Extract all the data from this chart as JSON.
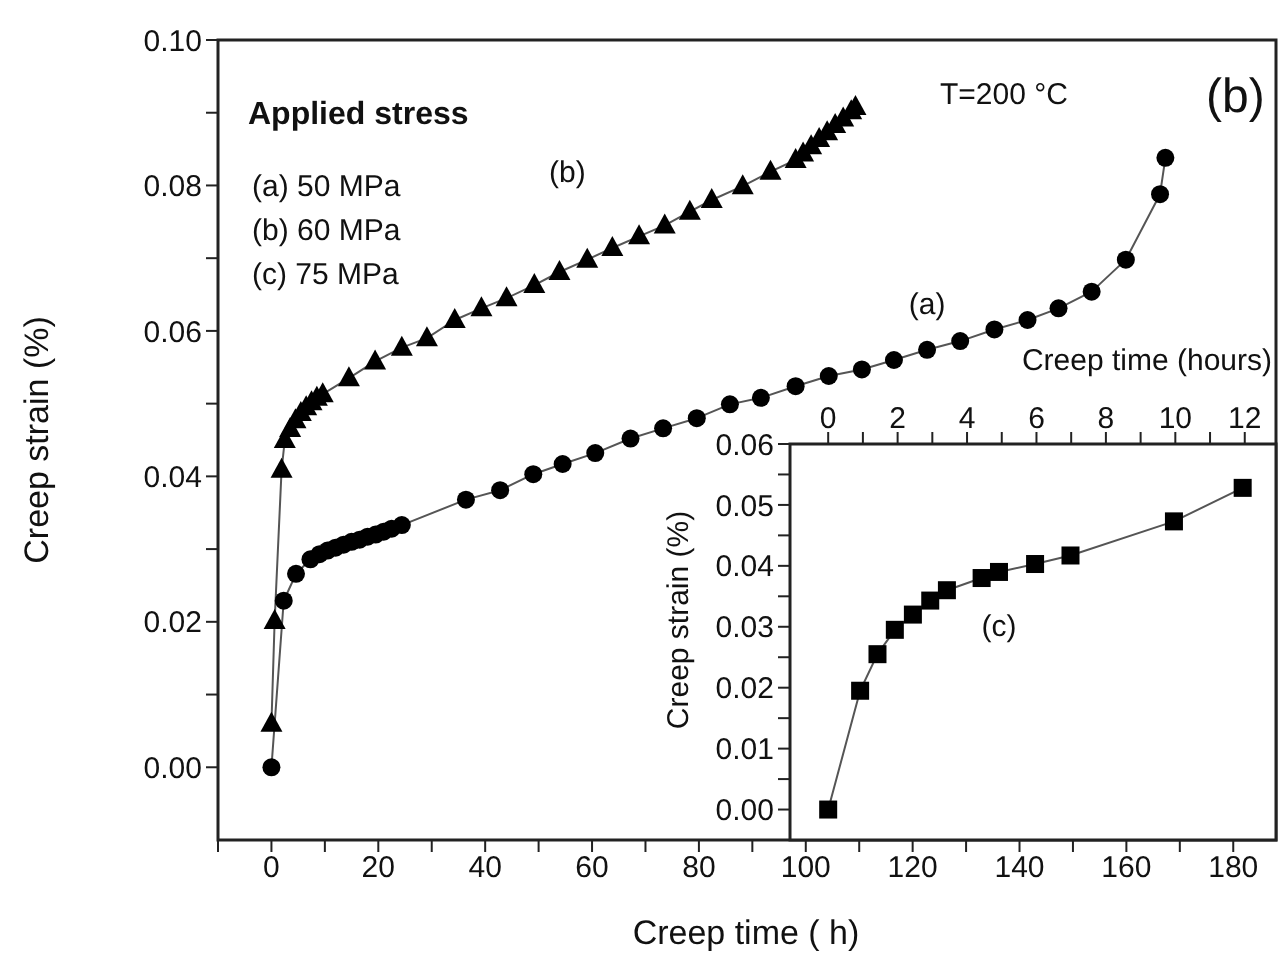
{
  "chart_data": [
    {
      "type": "line",
      "xlabel": "Creep time ( h)",
      "ylabel": "Creep strain (%)",
      "xlim": [
        -10,
        188
      ],
      "ylim": [
        -0.01,
        0.1
      ],
      "xticks": [
        {
          "value": -10,
          "label": null
        },
        0,
        {
          "value": 10,
          "label": null
        },
        20,
        {
          "value": 30,
          "label": null
        },
        40,
        {
          "value": 50,
          "label": null
        },
        60,
        {
          "value": 70,
          "label": null
        },
        80,
        {
          "value": 90,
          "label": null
        },
        100,
        {
          "value": 110,
          "label": null
        },
        120,
        {
          "value": 130,
          "label": null
        },
        140,
        {
          "value": 150,
          "label": null
        },
        160,
        {
          "value": 170,
          "label": null
        },
        180
      ],
      "yticks": [
        {
          "value": 0,
          "label": "0.00"
        },
        {
          "value": 0.01,
          "label": null
        },
        {
          "value": 0.02,
          "label": "0.02"
        },
        {
          "value": 0.03,
          "label": null
        },
        {
          "value": 0.04,
          "label": "0.04"
        },
        {
          "value": 0.05,
          "label": null
        },
        {
          "value": 0.06,
          "label": "0.06"
        },
        {
          "value": 0.07,
          "label": null
        },
        {
          "value": 0.08,
          "label": "0.08"
        },
        {
          "value": 0.09,
          "label": null
        },
        {
          "value": 0.1,
          "label": "0.10"
        }
      ],
      "grid": false,
      "line_style": "solid",
      "annotations": [
        "Applied stress",
        "(a)  50 MPa",
        "(b)  60 MPa",
        "(c)  75 MPa",
        "T=200 °C",
        "(b)"
      ],
      "series": [
        {
          "name": "(a)",
          "color": "#000000",
          "marker": "circle",
          "x": [
            0,
            2.3,
            4.6,
            7.3,
            9,
            10.5,
            12,
            13.5,
            15,
            16.5,
            18,
            19.5,
            21,
            22.5,
            24.4,
            36.4,
            42.8,
            49,
            54.5,
            60.6,
            67.2,
            73.3,
            79.6,
            85.8,
            91.6,
            98.1,
            104.3,
            110.5,
            116.5,
            122.7,
            128.9,
            135.3,
            141.5,
            147.3,
            153.5,
            159.9,
            166.3,
            167.3
          ],
          "values": [
            0,
            0.0229,
            0.0266,
            0.0286,
            0.0293,
            0.0298,
            0.0302,
            0.0306,
            0.031,
            0.0313,
            0.0317,
            0.032,
            0.0324,
            0.0328,
            0.0333,
            0.0368,
            0.0381,
            0.0403,
            0.0417,
            0.0432,
            0.0452,
            0.0466,
            0.048,
            0.0499,
            0.0508,
            0.0524,
            0.0538,
            0.0547,
            0.056,
            0.0574,
            0.0586,
            0.0602,
            0.0615,
            0.0631,
            0.0654,
            0.0698,
            0.0788,
            0.0838
          ]
        },
        {
          "name": "(b)",
          "color": "#000000",
          "marker": "triangle",
          "x": [
            0,
            0.6,
            1.9,
            2.5,
            3.5,
            4.5,
            5.5,
            6.5,
            7.5,
            8.5,
            9.6,
            14.5,
            19.4,
            24.4,
            29.1,
            34.3,
            39.3,
            44,
            49.2,
            53.9,
            59.1,
            63.8,
            68.8,
            73.6,
            78.3,
            82.4,
            88.2,
            93.4,
            98.1,
            99.5,
            101,
            102.5,
            104,
            105.5,
            107,
            108.5,
            109.3
          ],
          "values": [
            0.006,
            0.0201,
            0.0409,
            0.045,
            0.0465,
            0.0477,
            0.0487,
            0.0495,
            0.0502,
            0.0508,
            0.0513,
            0.0535,
            0.0558,
            0.0577,
            0.059,
            0.0615,
            0.0631,
            0.0645,
            0.0663,
            0.0681,
            0.0698,
            0.0714,
            0.073,
            0.0745,
            0.0764,
            0.078,
            0.0799,
            0.0819,
            0.0835,
            0.0844,
            0.0854,
            0.0864,
            0.0873,
            0.0883,
            0.0892,
            0.0902,
            0.0908
          ]
        }
      ]
    },
    {
      "type": "line",
      "xlabel": "Creep time (hours)",
      "ylabel": "Creep strain (%)",
      "xlim": [
        -1.1,
        12.9
      ],
      "ylim": [
        -0.005,
        0.06
      ],
      "xticks": [
        0,
        {
          "value": 1,
          "label": null
        },
        2,
        {
          "value": 3,
          "label": null
        },
        4,
        {
          "value": 5,
          "label": null
        },
        6,
        {
          "value": 7,
          "label": null
        },
        8,
        {
          "value": 9,
          "label": null
        },
        10,
        {
          "value": 11,
          "label": null
        },
        12
      ],
      "yticks": [
        {
          "value": 0,
          "label": "0.00"
        },
        {
          "value": 0.005,
          "label": null
        },
        {
          "value": 0.01,
          "label": "0.01"
        },
        {
          "value": 0.015,
          "label": null
        },
        {
          "value": 0.02,
          "label": "0.02"
        },
        {
          "value": 0.025,
          "label": null
        },
        {
          "value": 0.03,
          "label": "0.03"
        },
        {
          "value": 0.035,
          "label": null
        },
        {
          "value": 0.04,
          "label": "0.04"
        },
        {
          "value": 0.045,
          "label": null
        },
        {
          "value": 0.05,
          "label": "0.05"
        },
        {
          "value": 0.055,
          "label": null
        },
        {
          "value": 0.06,
          "label": "0.06"
        }
      ],
      "grid": false,
      "line_style": "solid",
      "series": [
        {
          "name": "(c)",
          "color": "#000000",
          "marker": "square",
          "x": [
            0,
            0.92,
            1.42,
            1.92,
            2.44,
            2.94,
            3.42,
            4.42,
            4.92,
            5.96,
            6.98,
            9.96,
            11.94
          ],
          "values": [
            0,
            0.0195,
            0.0255,
            0.0295,
            0.032,
            0.0343,
            0.036,
            0.038,
            0.039,
            0.0403,
            0.0417,
            0.0473,
            0.0528
          ]
        }
      ]
    }
  ]
}
